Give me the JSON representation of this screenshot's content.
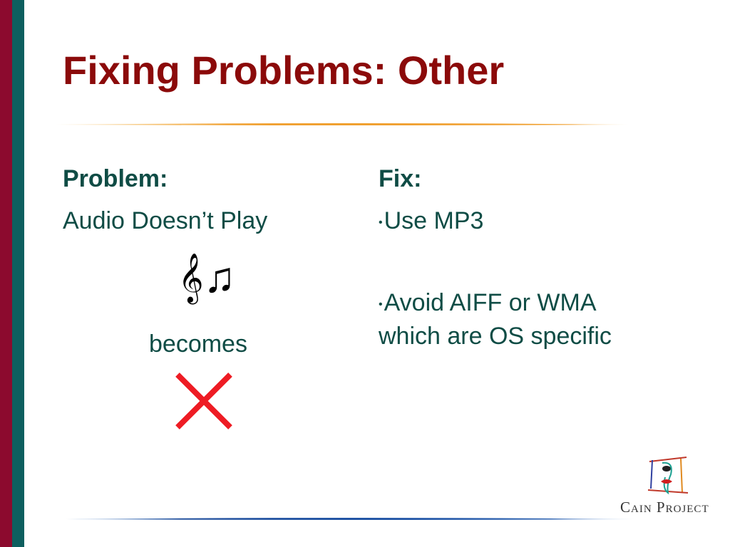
{
  "slide": {
    "title": "Fixing Problems: Other",
    "problem": {
      "heading": "Problem:",
      "text": "Audio Doesn’t Play",
      "music_icon": "music-notes-icon",
      "becomes": "becomes",
      "cross_icon": "red-x-icon"
    },
    "fix": {
      "heading": "Fix:",
      "bullets": [
        "Use MP3",
        "Avoid AIFF or WMA",
        "which are OS specific"
      ]
    },
    "logo": {
      "text": "Cain Project"
    },
    "colors": {
      "title": "#8b0a0a",
      "body": "#0f4c45",
      "side_red": "#8c0a2e",
      "side_teal": "#0e5f5f",
      "accent_orange": "#f0a030",
      "cross": "#ee1c24"
    }
  }
}
